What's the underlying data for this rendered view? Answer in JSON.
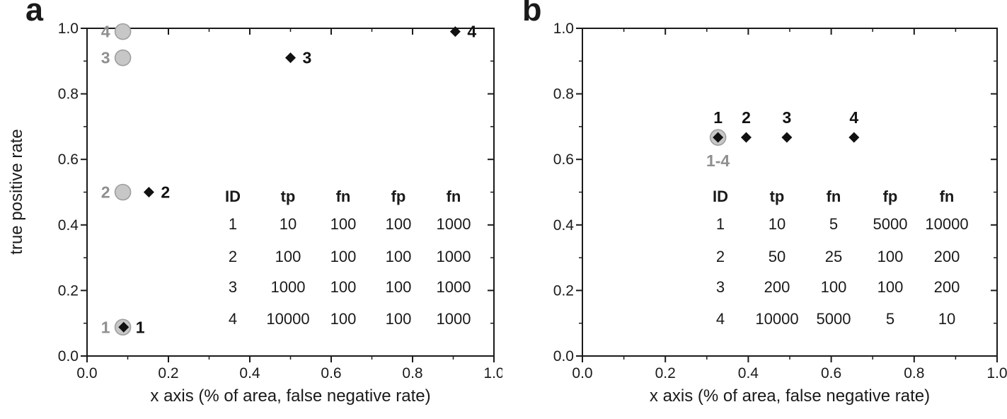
{
  "colors": {
    "background": "#ffffff",
    "axis": "#1a1a1a",
    "text": "#1a1a1a",
    "gray_label": "#8f8f8f",
    "circle_fill": "#c7c7c7",
    "circle_stroke": "#9e9e9e",
    "diamond": "#111111"
  },
  "chart_data": [
    {
      "type": "scatter",
      "panel_label": "a",
      "xlabel": "x axis (% of area, false negative rate)",
      "ylabel": "true positive rate",
      "xlim": [
        0.0,
        1.0
      ],
      "ylim": [
        0.0,
        1.0
      ],
      "grid": false,
      "xticks": [
        0.0,
        0.2,
        0.4,
        0.6,
        0.8,
        1.0
      ],
      "xtick_labels": [
        "0.0",
        "0.2",
        "0.4",
        "0.6",
        "0.8",
        "1.0"
      ],
      "x_minor_ticks": [
        0.1,
        0.3,
        0.5,
        0.7,
        0.9
      ],
      "yticks": [
        0.0,
        0.2,
        0.4,
        0.6,
        0.8,
        1.0
      ],
      "ytick_labels": [
        "0.0",
        "0.2",
        "0.4",
        "0.6",
        "0.8",
        "1.0"
      ],
      "y_minor_ticks": [
        0.1,
        0.3,
        0.5,
        0.7,
        0.9
      ],
      "series": [
        {
          "name": "gray-circles",
          "marker": "circle",
          "fill": "#c7c7c7",
          "stroke": "#9e9e9e",
          "label_color": "#8f8f8f",
          "label_side": "left",
          "points": [
            {
              "label": "1",
              "x": 0.088,
              "y": 0.088
            },
            {
              "label": "2",
              "x": 0.088,
              "y": 0.5
            },
            {
              "label": "3",
              "x": 0.088,
              "y": 0.91
            },
            {
              "label": "4",
              "x": 0.088,
              "y": 0.99
            }
          ]
        },
        {
          "name": "black-diamonds",
          "marker": "diamond",
          "fill": "#111111",
          "stroke": "#111111",
          "label_color": "#111111",
          "label_side": "right",
          "points": [
            {
              "label": "1",
              "x": 0.09,
              "y": 0.088
            },
            {
              "label": "2",
              "x": 0.152,
              "y": 0.5
            },
            {
              "label": "3",
              "x": 0.5,
              "y": 0.91
            },
            {
              "label": "4",
              "x": 0.905,
              "y": 0.99
            }
          ]
        }
      ],
      "table": {
        "headers": [
          "ID",
          "tp",
          "fn",
          "fp",
          "fn"
        ],
        "rows": [
          [
            "1",
            "10",
            "100",
            "100",
            "1000"
          ],
          [
            "2",
            "100",
            "100",
            "100",
            "1000"
          ],
          [
            "3",
            "1000",
            "100",
            "100",
            "1000"
          ],
          [
            "4",
            "10000",
            "100",
            "100",
            "1000"
          ]
        ]
      }
    },
    {
      "type": "scatter",
      "panel_label": "b",
      "xlabel": "x axis (% of area, false negative rate)",
      "ylabel": "",
      "xlim": [
        0.0,
        1.0
      ],
      "ylim": [
        0.0,
        1.0
      ],
      "grid": false,
      "xticks": [
        0.0,
        0.2,
        0.4,
        0.6,
        0.8,
        1.0
      ],
      "xtick_labels": [
        "0.0",
        "0.2",
        "0.4",
        "0.6",
        "0.8",
        "1.0"
      ],
      "x_minor_ticks": [
        0.1,
        0.3,
        0.5,
        0.7,
        0.9
      ],
      "yticks": [
        0.0,
        0.2,
        0.4,
        0.6,
        0.8,
        1.0
      ],
      "ytick_labels": [
        "0.0",
        "0.2",
        "0.4",
        "0.6",
        "0.8",
        "1.0"
      ],
      "y_minor_ticks": [
        0.1,
        0.3,
        0.5,
        0.7,
        0.9
      ],
      "series": [
        {
          "name": "gray-circles",
          "marker": "circle",
          "fill": "#c7c7c7",
          "stroke": "#9e9e9e",
          "label_color": "#8f8f8f",
          "label_side": "below",
          "points": [
            {
              "label": "1-4",
              "x": 0.327,
              "y": 0.667
            }
          ]
        },
        {
          "name": "black-diamonds",
          "marker": "diamond",
          "fill": "#111111",
          "stroke": "#111111",
          "label_color": "#111111",
          "label_side": "above",
          "points": [
            {
              "label": "1",
              "x": 0.327,
              "y": 0.667
            },
            {
              "label": "2",
              "x": 0.395,
              "y": 0.667
            },
            {
              "label": "3",
              "x": 0.493,
              "y": 0.667
            },
            {
              "label": "4",
              "x": 0.655,
              "y": 0.667
            }
          ]
        }
      ],
      "table": {
        "headers": [
          "ID",
          "tp",
          "fn",
          "fp",
          "fn"
        ],
        "rows": [
          [
            "1",
            "10",
            "5",
            "5000",
            "10000"
          ],
          [
            "2",
            "50",
            "25",
            "100",
            "200"
          ],
          [
            "3",
            "200",
            "100",
            "100",
            "200"
          ],
          [
            "4",
            "10000",
            "5000",
            "5",
            "10"
          ]
        ]
      }
    }
  ]
}
